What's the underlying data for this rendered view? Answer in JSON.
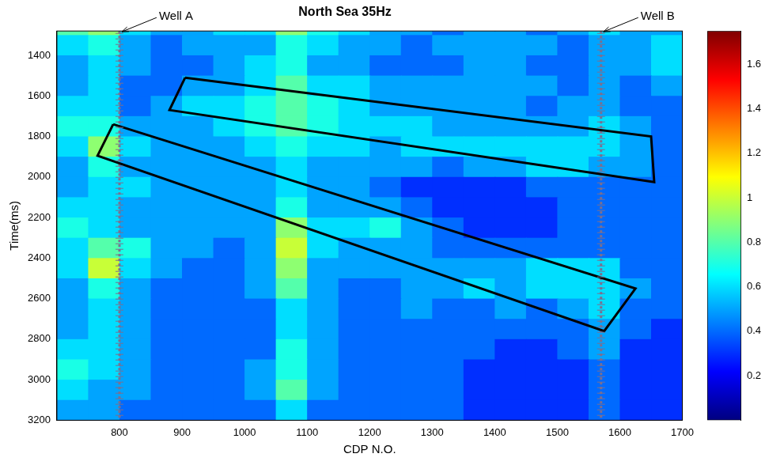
{
  "chart_data": {
    "type": "heatmap",
    "title": "North Sea 35Hz",
    "x_label": "CDP N.O.",
    "y_label": "Time(ms)",
    "xlim": [
      700,
      1700
    ],
    "xticks": [
      800,
      900,
      1000,
      1100,
      1200,
      1300,
      1400,
      1500,
      1600,
      1700
    ],
    "ylim": [
      1280,
      3200
    ],
    "yticks": [
      1400,
      1600,
      1800,
      2000,
      2200,
      2400,
      2600,
      2800,
      3000,
      3200
    ],
    "cells": {
      "x_edges": [
        700,
        750,
        800,
        850,
        900,
        950,
        1000,
        1050,
        1100,
        1150,
        1200,
        1250,
        1300,
        1350,
        1400,
        1450,
        1500,
        1550,
        1600,
        1650,
        1700
      ],
      "y_edges": [
        1280,
        1300,
        1400,
        1500,
        1600,
        1700,
        1800,
        1900,
        2000,
        2100,
        2200,
        2300,
        2400,
        2500,
        2600,
        2700,
        2800,
        2900,
        3000,
        3100,
        3200
      ],
      "values": [
        [
          0.8,
          0.9,
          0.6,
          0.5,
          0.5,
          0.6,
          0.6,
          0.9,
          0.7,
          0.6,
          0.5,
          0.5,
          0.4,
          0.5,
          0.5,
          0.4,
          0.5,
          0.6,
          0.5,
          0.5
        ],
        [
          0.6,
          0.7,
          0.5,
          0.4,
          0.5,
          0.5,
          0.5,
          0.7,
          0.6,
          0.5,
          0.5,
          0.4,
          0.5,
          0.5,
          0.5,
          0.5,
          0.4,
          0.5,
          0.5,
          0.6
        ],
        [
          0.5,
          0.6,
          0.5,
          0.4,
          0.4,
          0.5,
          0.6,
          0.7,
          0.5,
          0.5,
          0.4,
          0.4,
          0.4,
          0.5,
          0.5,
          0.4,
          0.4,
          0.5,
          0.5,
          0.6
        ],
        [
          0.5,
          0.6,
          0.4,
          0.4,
          0.5,
          0.5,
          0.6,
          0.8,
          0.6,
          0.6,
          0.5,
          0.5,
          0.5,
          0.5,
          0.5,
          0.5,
          0.4,
          0.5,
          0.4,
          0.5
        ],
        [
          0.6,
          0.6,
          0.4,
          0.5,
          0.6,
          0.6,
          0.7,
          0.8,
          0.7,
          0.6,
          0.5,
          0.5,
          0.5,
          0.5,
          0.5,
          0.4,
          0.5,
          0.5,
          0.4,
          0.4
        ],
        [
          0.7,
          0.7,
          0.5,
          0.5,
          0.5,
          0.6,
          0.7,
          0.8,
          0.7,
          0.6,
          0.6,
          0.6,
          0.5,
          0.5,
          0.5,
          0.5,
          0.5,
          0.6,
          0.5,
          0.4
        ],
        [
          0.6,
          0.9,
          0.6,
          0.5,
          0.5,
          0.5,
          0.6,
          0.7,
          0.6,
          0.6,
          0.5,
          0.6,
          0.6,
          0.6,
          0.6,
          0.6,
          0.6,
          0.6,
          0.5,
          0.4
        ],
        [
          0.5,
          0.7,
          0.5,
          0.5,
          0.5,
          0.5,
          0.5,
          0.6,
          0.5,
          0.5,
          0.5,
          0.5,
          0.4,
          0.5,
          0.5,
          0.6,
          0.6,
          0.5,
          0.5,
          0.4
        ],
        [
          0.5,
          0.6,
          0.6,
          0.5,
          0.5,
          0.5,
          0.5,
          0.6,
          0.5,
          0.5,
          0.4,
          0.3,
          0.3,
          0.3,
          0.3,
          0.4,
          0.4,
          0.4,
          0.4,
          0.4
        ],
        [
          0.6,
          0.6,
          0.5,
          0.5,
          0.5,
          0.5,
          0.5,
          0.7,
          0.5,
          0.5,
          0.5,
          0.4,
          0.3,
          0.3,
          0.3,
          0.3,
          0.4,
          0.4,
          0.4,
          0.4
        ],
        [
          0.7,
          0.6,
          0.5,
          0.5,
          0.5,
          0.5,
          0.5,
          0.9,
          0.6,
          0.6,
          0.7,
          0.5,
          0.4,
          0.3,
          0.3,
          0.3,
          0.4,
          0.4,
          0.4,
          0.4
        ],
        [
          0.6,
          0.8,
          0.7,
          0.5,
          0.5,
          0.4,
          0.5,
          1.0,
          0.6,
          0.5,
          0.5,
          0.5,
          0.4,
          0.4,
          0.4,
          0.4,
          0.4,
          0.4,
          0.4,
          0.4
        ],
        [
          0.6,
          1.0,
          0.6,
          0.5,
          0.4,
          0.4,
          0.5,
          0.9,
          0.5,
          0.5,
          0.5,
          0.5,
          0.5,
          0.5,
          0.5,
          0.6,
          0.6,
          0.6,
          0.4,
          0.4
        ],
        [
          0.5,
          0.7,
          0.5,
          0.4,
          0.4,
          0.4,
          0.5,
          0.8,
          0.5,
          0.4,
          0.4,
          0.5,
          0.5,
          0.6,
          0.5,
          0.6,
          0.6,
          0.6,
          0.5,
          0.4
        ],
        [
          0.5,
          0.6,
          0.5,
          0.4,
          0.4,
          0.4,
          0.4,
          0.6,
          0.5,
          0.4,
          0.4,
          0.5,
          0.4,
          0.4,
          0.5,
          0.4,
          0.5,
          0.6,
          0.4,
          0.4
        ],
        [
          0.5,
          0.6,
          0.5,
          0.4,
          0.4,
          0.4,
          0.4,
          0.6,
          0.5,
          0.4,
          0.4,
          0.4,
          0.4,
          0.4,
          0.4,
          0.4,
          0.4,
          0.5,
          0.4,
          0.3
        ],
        [
          0.6,
          0.6,
          0.5,
          0.4,
          0.4,
          0.4,
          0.4,
          0.7,
          0.5,
          0.4,
          0.4,
          0.4,
          0.4,
          0.4,
          0.3,
          0.3,
          0.4,
          0.5,
          0.3,
          0.3
        ],
        [
          0.7,
          0.6,
          0.5,
          0.4,
          0.4,
          0.4,
          0.5,
          0.7,
          0.5,
          0.4,
          0.4,
          0.4,
          0.4,
          0.3,
          0.3,
          0.3,
          0.3,
          0.4,
          0.3,
          0.3
        ],
        [
          0.6,
          0.5,
          0.5,
          0.4,
          0.4,
          0.4,
          0.5,
          0.8,
          0.5,
          0.4,
          0.4,
          0.4,
          0.4,
          0.3,
          0.3,
          0.3,
          0.3,
          0.4,
          0.3,
          0.3
        ],
        [
          0.5,
          0.5,
          0.4,
          0.4,
          0.4,
          0.4,
          0.4,
          0.6,
          0.4,
          0.4,
          0.4,
          0.4,
          0.4,
          0.3,
          0.3,
          0.3,
          0.3,
          0.4,
          0.3,
          0.3
        ]
      ]
    },
    "color_range": [
      0,
      1.75
    ],
    "color_ticks": [
      0.2,
      0.4,
      0.6,
      0.8,
      1,
      1.2,
      1.4,
      1.6
    ],
    "wells": [
      {
        "label": "Well A",
        "x": 800
      },
      {
        "label": "Well B",
        "x": 1570
      }
    ],
    "zones": [
      [
        [
          905,
          1510
        ],
        [
          1650,
          1800
        ],
        [
          1655,
          2025
        ],
        [
          880,
          1670
        ]
      ],
      [
        [
          790,
          1740
        ],
        [
          1625,
          2550
        ],
        [
          1575,
          2760
        ],
        [
          765,
          1895
        ]
      ]
    ]
  }
}
